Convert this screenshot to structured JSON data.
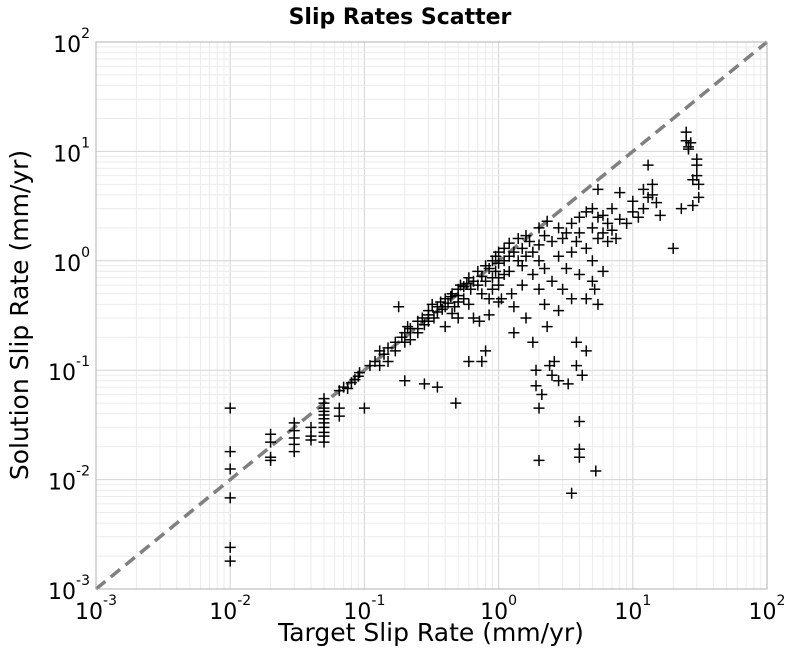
{
  "chart_data": {
    "type": "scatter",
    "title": "Slip Rates Scatter",
    "xlabel": "Target Slip Rate (mm/yr)",
    "ylabel": "Solution Slip Rate (mm/yr)",
    "xscale": "log",
    "yscale": "log",
    "xlim": [
      0.001,
      100
    ],
    "ylim": [
      0.001,
      100
    ],
    "grid": true,
    "marker": "plus",
    "marker_color": "#000000",
    "reference_line_color": "#808080",
    "x_ticks": [
      {
        "value": 0.001,
        "base": "10",
        "exp": "-3"
      },
      {
        "value": 0.01,
        "base": "10",
        "exp": "-2"
      },
      {
        "value": 0.1,
        "base": "10",
        "exp": "-1"
      },
      {
        "value": 1,
        "base": "10",
        "exp": "0"
      },
      {
        "value": 10,
        "base": "10",
        "exp": "1"
      },
      {
        "value": 100,
        "base": "10",
        "exp": "2"
      }
    ],
    "y_ticks": [
      {
        "value": 0.001,
        "base": "10",
        "exp": "-3"
      },
      {
        "value": 0.01,
        "base": "10",
        "exp": "-2"
      },
      {
        "value": 0.1,
        "base": "10",
        "exp": "-1"
      },
      {
        "value": 1,
        "base": "10",
        "exp": "0"
      },
      {
        "value": 10,
        "base": "10",
        "exp": "1"
      },
      {
        "value": 100,
        "base": "10",
        "exp": "2"
      }
    ],
    "reference_line": {
      "x": [
        0.001,
        100
      ],
      "y": [
        0.001,
        100
      ]
    },
    "points": [
      [
        0.01,
        0.045
      ],
      [
        0.01,
        0.018
      ],
      [
        0.01,
        0.0125
      ],
      [
        0.01,
        0.0068
      ],
      [
        0.01,
        0.0024
      ],
      [
        0.01,
        0.0018
      ],
      [
        0.02,
        0.026
      ],
      [
        0.02,
        0.022
      ],
      [
        0.02,
        0.016
      ],
      [
        0.02,
        0.015
      ],
      [
        0.03,
        0.033
      ],
      [
        0.03,
        0.028
      ],
      [
        0.03,
        0.024
      ],
      [
        0.03,
        0.021
      ],
      [
        0.03,
        0.018
      ],
      [
        0.04,
        0.03
      ],
      [
        0.04,
        0.025
      ],
      [
        0.04,
        0.023
      ],
      [
        0.05,
        0.055
      ],
      [
        0.05,
        0.05
      ],
      [
        0.05,
        0.045
      ],
      [
        0.05,
        0.042
      ],
      [
        0.05,
        0.039
      ],
      [
        0.05,
        0.036
      ],
      [
        0.05,
        0.033
      ],
      [
        0.05,
        0.03
      ],
      [
        0.05,
        0.027
      ],
      [
        0.05,
        0.025
      ],
      [
        0.05,
        0.022
      ],
      [
        0.065,
        0.065
      ],
      [
        0.065,
        0.038
      ],
      [
        0.065,
        0.045
      ],
      [
        0.07,
        0.07
      ],
      [
        0.075,
        0.068
      ],
      [
        0.08,
        0.077
      ],
      [
        0.085,
        0.082
      ],
      [
        0.09,
        0.088
      ],
      [
        0.092,
        0.095
      ],
      [
        0.1,
        0.045
      ],
      [
        0.11,
        0.11
      ],
      [
        0.12,
        0.12
      ],
      [
        0.13,
        0.11
      ],
      [
        0.13,
        0.15
      ],
      [
        0.14,
        0.14
      ],
      [
        0.15,
        0.16
      ],
      [
        0.15,
        0.12
      ],
      [
        0.17,
        0.18
      ],
      [
        0.17,
        0.15
      ],
      [
        0.18,
        0.38
      ],
      [
        0.19,
        0.2
      ],
      [
        0.2,
        0.22
      ],
      [
        0.2,
        0.18
      ],
      [
        0.2,
        0.08
      ],
      [
        0.21,
        0.25
      ],
      [
        0.22,
        0.24
      ],
      [
        0.22,
        0.19
      ],
      [
        0.25,
        0.28
      ],
      [
        0.25,
        0.24
      ],
      [
        0.25,
        0.22
      ],
      [
        0.27,
        0.3
      ],
      [
        0.28,
        0.26
      ],
      [
        0.28,
        0.075
      ],
      [
        0.3,
        0.35
      ],
      [
        0.3,
        0.32
      ],
      [
        0.3,
        0.28
      ],
      [
        0.32,
        0.4
      ],
      [
        0.33,
        0.3
      ],
      [
        0.35,
        0.38
      ],
      [
        0.35,
        0.34
      ],
      [
        0.35,
        0.07
      ],
      [
        0.37,
        0.42
      ],
      [
        0.38,
        0.36
      ],
      [
        0.4,
        0.45
      ],
      [
        0.4,
        0.25
      ],
      [
        0.4,
        0.38
      ],
      [
        0.42,
        0.41
      ],
      [
        0.44,
        0.47
      ],
      [
        0.45,
        0.33
      ],
      [
        0.45,
        0.5
      ],
      [
        0.47,
        0.38
      ],
      [
        0.48,
        0.05
      ],
      [
        0.5,
        0.55
      ],
      [
        0.5,
        0.48
      ],
      [
        0.5,
        0.42
      ],
      [
        0.5,
        0.3
      ],
      [
        0.52,
        0.6
      ],
      [
        0.55,
        0.58
      ],
      [
        0.55,
        0.45
      ],
      [
        0.58,
        0.62
      ],
      [
        0.6,
        0.7
      ],
      [
        0.6,
        0.4
      ],
      [
        0.6,
        0.12
      ],
      [
        0.62,
        0.55
      ],
      [
        0.65,
        0.65
      ],
      [
        0.65,
        0.3
      ],
      [
        0.7,
        0.8
      ],
      [
        0.7,
        0.6
      ],
      [
        0.72,
        0.28
      ],
      [
        0.75,
        0.72
      ],
      [
        0.75,
        0.5
      ],
      [
        0.75,
        0.12
      ],
      [
        0.8,
        0.9
      ],
      [
        0.8,
        0.65
      ],
      [
        0.8,
        0.15
      ],
      [
        0.85,
        0.85
      ],
      [
        0.85,
        0.45
      ],
      [
        0.85,
        0.32
      ],
      [
        0.9,
        1.0
      ],
      [
        0.9,
        0.7
      ],
      [
        0.9,
        0.55
      ],
      [
        0.95,
        1.1
      ],
      [
        0.95,
        0.8
      ],
      [
        1.0,
        1.2
      ],
      [
        1.0,
        0.95
      ],
      [
        1.0,
        0.7
      ],
      [
        1.0,
        0.6
      ],
      [
        1.0,
        0.42
      ],
      [
        1.05,
        0.45
      ],
      [
        1.1,
        1.3
      ],
      [
        1.1,
        1.0
      ],
      [
        1.1,
        0.75
      ],
      [
        1.2,
        1.45
      ],
      [
        1.2,
        1.1
      ],
      [
        1.2,
        0.8
      ],
      [
        1.25,
        0.5
      ],
      [
        1.3,
        1.2
      ],
      [
        1.3,
        0.38
      ],
      [
        1.3,
        0.22
      ],
      [
        1.4,
        1.6
      ],
      [
        1.4,
        1.0
      ],
      [
        1.5,
        1.3
      ],
      [
        1.5,
        0.9
      ],
      [
        1.5,
        0.6
      ],
      [
        1.6,
        1.7
      ],
      [
        1.6,
        1.1
      ],
      [
        1.6,
        0.3
      ],
      [
        1.7,
        1.5
      ],
      [
        1.8,
        1.2
      ],
      [
        1.8,
        0.75
      ],
      [
        1.8,
        0.18
      ],
      [
        1.9,
        0.1
      ],
      [
        1.9,
        0.072
      ],
      [
        2.0,
        2.0
      ],
      [
        2.0,
        1.4
      ],
      [
        2.0,
        1.0
      ],
      [
        2.0,
        0.55
      ],
      [
        2.0,
        0.045
      ],
      [
        2.0,
        0.015
      ],
      [
        2.1,
        0.06
      ],
      [
        2.2,
        1.7
      ],
      [
        2.2,
        0.85
      ],
      [
        2.2,
        0.4
      ],
      [
        2.3,
        2.3
      ],
      [
        2.3,
        0.25
      ],
      [
        2.4,
        0.11
      ],
      [
        2.5,
        1.5
      ],
      [
        2.5,
        0.65
      ],
      [
        2.5,
        0.09
      ],
      [
        2.6,
        0.12
      ],
      [
        2.8,
        2.0
      ],
      [
        2.8,
        1.1
      ],
      [
        2.8,
        0.35
      ],
      [
        2.8,
        0.08
      ],
      [
        3.0,
        1.6
      ],
      [
        3.0,
        0.55
      ],
      [
        3.2,
        1.8
      ],
      [
        3.2,
        0.85
      ],
      [
        3.3,
        0.075
      ],
      [
        3.5,
        2.2
      ],
      [
        3.5,
        1.2
      ],
      [
        3.5,
        0.45
      ],
      [
        3.5,
        0.0075
      ],
      [
        3.8,
        1.5
      ],
      [
        3.8,
        0.18
      ],
      [
        3.8,
        0.11
      ],
      [
        4.0,
        2.5
      ],
      [
        4.0,
        1.8
      ],
      [
        4.0,
        0.75
      ],
      [
        4.0,
        0.034
      ],
      [
        4.0,
        0.019
      ],
      [
        4.0,
        0.016
      ],
      [
        4.2,
        0.09
      ],
      [
        4.5,
        2.8
      ],
      [
        4.5,
        1.3
      ],
      [
        4.5,
        0.45
      ],
      [
        4.5,
        0.15
      ],
      [
        5.0,
        3.0
      ],
      [
        5.0,
        2.0
      ],
      [
        5.0,
        1.0
      ],
      [
        5.0,
        0.65
      ],
      [
        5.2,
        0.55
      ],
      [
        5.3,
        0.012
      ],
      [
        5.5,
        4.5
      ],
      [
        5.5,
        2.5
      ],
      [
        5.5,
        1.6
      ],
      [
        5.5,
        0.4
      ],
      [
        6.0,
        2.6
      ],
      [
        6.0,
        1.8
      ],
      [
        6.0,
        0.8
      ],
      [
        6.5,
        2.2
      ],
      [
        6.5,
        1.5
      ],
      [
        7.0,
        3.0
      ],
      [
        7.0,
        1.9
      ],
      [
        7.5,
        1.6
      ],
      [
        8.0,
        2.4
      ],
      [
        8.0,
        4.2
      ],
      [
        9.0,
        2.2
      ],
      [
        10.0,
        3.5
      ],
      [
        10.0,
        2.8
      ],
      [
        11.0,
        2.5
      ],
      [
        12.0,
        3.0
      ],
      [
        12.0,
        4.5
      ],
      [
        13.0,
        3.8
      ],
      [
        13.0,
        7.5
      ],
      [
        14.0,
        5.0
      ],
      [
        14.0,
        4.0
      ],
      [
        15.0,
        3.4
      ],
      [
        16.0,
        2.6
      ],
      [
        20.0,
        1.3
      ],
      [
        23.0,
        3.0
      ],
      [
        25.0,
        15.0
      ],
      [
        25.0,
        12.5
      ],
      [
        26.0,
        11.0
      ],
      [
        26.0,
        10.5
      ],
      [
        27.0,
        12.0
      ],
      [
        28.0,
        5.5
      ],
      [
        28.0,
        3.2
      ],
      [
        30.0,
        7.5
      ],
      [
        30.0,
        6.0
      ],
      [
        31.0,
        5.0
      ],
      [
        31.0,
        3.8
      ],
      [
        30.0,
        8.5
      ]
    ]
  }
}
